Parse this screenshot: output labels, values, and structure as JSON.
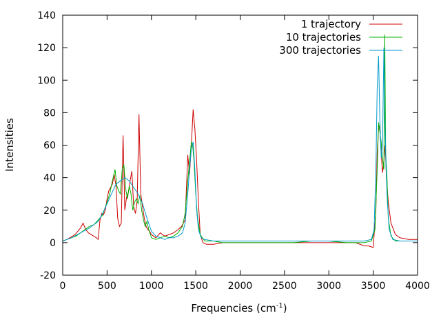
{
  "chart_data": {
    "type": "line",
    "xlabel": "Frequencies (cm",
    "xlabel_sup": "-1",
    "xlabel_end": ")",
    "ylabel": "Intensities",
    "xlim": [
      0,
      4000
    ],
    "ylim": [
      -20,
      140
    ],
    "xticks": [
      0,
      500,
      1000,
      1500,
      2000,
      2500,
      3000,
      3500,
      4000
    ],
    "yticks": [
      -20,
      0,
      20,
      40,
      60,
      80,
      100,
      120,
      140
    ],
    "grid": false,
    "legend_position": "top-right",
    "series": [
      {
        "name": "1 trajectory",
        "color": "#cc0000",
        "x": [
          0,
          50,
          80,
          110,
          140,
          170,
          200,
          230,
          260,
          290,
          320,
          350,
          380,
          400,
          420,
          440,
          460,
          480,
          500,
          520,
          540,
          560,
          580,
          600,
          620,
          640,
          660,
          680,
          700,
          720,
          740,
          760,
          780,
          800,
          820,
          840,
          860,
          880,
          900,
          920,
          940,
          960,
          980,
          1000,
          1050,
          1100,
          1150,
          1200,
          1250,
          1300,
          1340,
          1380,
          1410,
          1430,
          1450,
          1470,
          1490,
          1510,
          1530,
          1550,
          1580,
          1620,
          1700,
          1800,
          1900,
          2000,
          2100,
          2200,
          2300,
          2400,
          2500,
          2600,
          2700,
          2800,
          2900,
          3000,
          3100,
          3200,
          3300,
          3400,
          3450,
          3500,
          3530,
          3545,
          3560,
          3575,
          3590,
          3605,
          3620,
          3635,
          3650,
          3670,
          3700,
          3750,
          3800,
          3900,
          4000
        ],
        "y": [
          1,
          2,
          3,
          4,
          5,
          7,
          9,
          12,
          8,
          6,
          5,
          4,
          3,
          2,
          14,
          18,
          17,
          20,
          27,
          32,
          34,
          36,
          42,
          35,
          15,
          10,
          12,
          66,
          20,
          28,
          31,
          38,
          44,
          22,
          18,
          26,
          79,
          30,
          22,
          15,
          10,
          8,
          7,
          5,
          3,
          6,
          4,
          5,
          6,
          8,
          10,
          14,
          54,
          42,
          60,
          82,
          70,
          50,
          25,
          5,
          0,
          -1,
          -1,
          0,
          0,
          0,
          0,
          0,
          0,
          0,
          0,
          0,
          0,
          0,
          0,
          0,
          0,
          0,
          0,
          -2,
          -2,
          -3,
          20,
          55,
          70,
          72,
          55,
          43,
          50,
          60,
          40,
          25,
          12,
          5,
          3,
          2,
          2
        ]
      },
      {
        "name": "10 trajectories",
        "color": "#00b000",
        "x": [
          0,
          50,
          100,
          150,
          200,
          250,
          300,
          350,
          400,
          450,
          500,
          530,
          560,
          590,
          610,
          630,
          650,
          670,
          690,
          710,
          730,
          750,
          770,
          790,
          810,
          830,
          850,
          870,
          890,
          910,
          930,
          950,
          970,
          1000,
          1050,
          1100,
          1150,
          1200,
          1250,
          1300,
          1350,
          1380,
          1410,
          1430,
          1450,
          1465,
          1480,
          1500,
          1520,
          1550,
          1600,
          1700,
          1800,
          2000,
          2200,
          2400,
          2600,
          2800,
          3000,
          3200,
          3400,
          3480,
          3520,
          3545,
          3560,
          3575,
          3590,
          3605,
          3620,
          3630,
          3640,
          3655,
          3670,
          3700,
          3750,
          3800,
          4000
        ],
        "y": [
          1,
          2,
          3,
          4,
          6,
          8,
          10,
          11,
          14,
          17,
          25,
          30,
          38,
          45,
          35,
          32,
          30,
          45,
          48,
          33,
          27,
          35,
          30,
          20,
          25,
          27,
          24,
          29,
          20,
          14,
          10,
          13,
          8,
          3,
          2,
          3,
          4,
          3,
          4,
          6,
          10,
          18,
          38,
          50,
          62,
          60,
          50,
          30,
          15,
          5,
          1,
          1,
          0,
          0,
          0,
          0,
          0,
          1,
          1,
          0,
          0,
          1,
          8,
          45,
          74,
          68,
          62,
          52,
          45,
          128,
          55,
          40,
          15,
          4,
          1,
          1,
          1
        ]
      },
      {
        "name": "300 trajectories",
        "color": "#0099cc",
        "x": [
          0,
          100,
          200,
          300,
          400,
          450,
          500,
          550,
          600,
          650,
          700,
          750,
          800,
          850,
          900,
          950,
          1000,
          1050,
          1100,
          1150,
          1200,
          1250,
          1300,
          1350,
          1380,
          1410,
          1430,
          1450,
          1470,
          1490,
          1510,
          1530,
          1560,
          1600,
          1700,
          1800,
          2000,
          2200,
          2400,
          2600,
          2800,
          3000,
          3200,
          3400,
          3480,
          3510,
          3530,
          3545,
          3560,
          3575,
          3590,
          3605,
          3620,
          3630,
          3645,
          3660,
          3680,
          3720,
          3800,
          4000
        ],
        "y": [
          1,
          3,
          6,
          9,
          13,
          18,
          24,
          30,
          36,
          38,
          40,
          38,
          34,
          30,
          24,
          15,
          7,
          4,
          3,
          2,
          3,
          3,
          4,
          6,
          12,
          30,
          45,
          58,
          62,
          45,
          20,
          8,
          3,
          2,
          1,
          1,
          1,
          1,
          1,
          1,
          1,
          1,
          1,
          1,
          2,
          8,
          45,
          95,
          115,
          75,
          52,
          60,
          120,
          80,
          45,
          25,
          8,
          2,
          1,
          1
        ]
      }
    ]
  }
}
